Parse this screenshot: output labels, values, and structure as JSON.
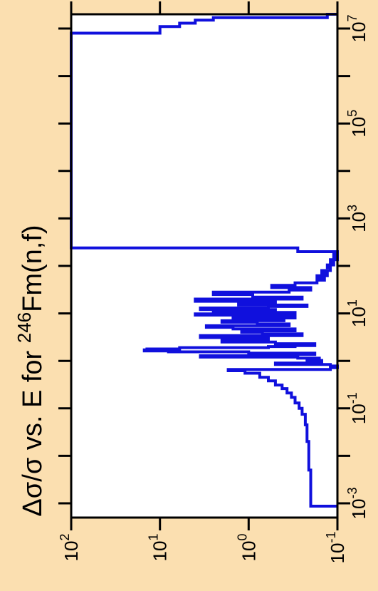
{
  "page": {
    "background": "#fbdfb0"
  },
  "chart_data": {
    "type": "line",
    "orientation": "rotated-90",
    "title": "Δσ/σ vs. E for ²⁴⁶Fm(n,f)",
    "title_parts": {
      "pre": "Δσ/σ vs. E for ",
      "sup": "246",
      "post": "Fm(n,f)"
    },
    "x_axis": {
      "label": "E",
      "scale": "log",
      "range": [
        0.0005,
        20000000
      ],
      "tick_labels": [
        {
          "value": 0.001,
          "base": "10",
          "exp": "-3"
        },
        {
          "value": 0.1,
          "base": "10",
          "exp": "-1"
        },
        {
          "value": 10,
          "base": "10",
          "exp": "1"
        },
        {
          "value": 1000,
          "base": "10",
          "exp": "3"
        },
        {
          "value": 100000,
          "base": "10",
          "exp": "5"
        },
        {
          "value": 10000000,
          "base": "10",
          "exp": "7"
        }
      ]
    },
    "y_axis": {
      "label": "Δσ/σ",
      "scale": "log",
      "range": [
        0.1,
        100
      ],
      "tick_labels": [
        {
          "value": 100,
          "base": "10",
          "exp": "2"
        },
        {
          "value": 10,
          "base": "10",
          "exp": "1"
        },
        {
          "value": 1,
          "base": "10",
          "exp": "0"
        },
        {
          "value": 0.1,
          "base": "10",
          "exp": "-1"
        }
      ]
    },
    "grid": false,
    "series": [
      {
        "color": "#1010dd",
        "points": [
          [
            0.00087,
            0.1
          ],
          [
            0.00087,
            0.2
          ],
          [
            0.005,
            0.2
          ],
          [
            0.005,
            0.21
          ],
          [
            0.02,
            0.21
          ],
          [
            0.02,
            0.22
          ],
          [
            0.045,
            0.22
          ],
          [
            0.045,
            0.23
          ],
          [
            0.075,
            0.23
          ],
          [
            0.075,
            0.25
          ],
          [
            0.1,
            0.25
          ],
          [
            0.1,
            0.27
          ],
          [
            0.13,
            0.27
          ],
          [
            0.13,
            0.3
          ],
          [
            0.17,
            0.3
          ],
          [
            0.17,
            0.33
          ],
          [
            0.21,
            0.33
          ],
          [
            0.21,
            0.37
          ],
          [
            0.26,
            0.37
          ],
          [
            0.26,
            0.42
          ],
          [
            0.31,
            0.42
          ],
          [
            0.31,
            0.5
          ],
          [
            0.38,
            0.5
          ],
          [
            0.38,
            0.6
          ],
          [
            0.45,
            0.6
          ],
          [
            0.45,
            0.75
          ],
          [
            0.55,
            0.75
          ],
          [
            0.55,
            1.1
          ],
          [
            0.62,
            1.1
          ],
          [
            0.62,
            1.7
          ],
          [
            0.66,
            1.7
          ],
          [
            0.66,
            0.12
          ],
          [
            0.72,
            0.12
          ],
          [
            0.72,
            0.1
          ],
          [
            0.78,
            0.1
          ],
          [
            0.78,
            0.12
          ],
          [
            0.84,
            0.12
          ],
          [
            0.84,
            0.5
          ],
          [
            0.9,
            0.5
          ],
          [
            0.9,
            0.2
          ],
          [
            0.96,
            0.2
          ],
          [
            0.96,
            0.15
          ],
          [
            1.02,
            0.15
          ],
          [
            1.02,
            0.22
          ],
          [
            1.08,
            0.22
          ],
          [
            1.08,
            0.16
          ],
          [
            1.14,
            0.16
          ],
          [
            1.14,
            0.28
          ],
          [
            1.2,
            0.28
          ],
          [
            1.2,
            3.5
          ],
          [
            1.28,
            3.5
          ],
          [
            1.28,
            0.6
          ],
          [
            1.36,
            0.6
          ],
          [
            1.36,
            0.18
          ],
          [
            1.45,
            0.18
          ],
          [
            1.45,
            1.0
          ],
          [
            1.55,
            1.0
          ],
          [
            1.55,
            8
          ],
          [
            1.62,
            8
          ],
          [
            1.62,
            15
          ],
          [
            1.7,
            15
          ],
          [
            1.7,
            14
          ],
          [
            1.78,
            14
          ],
          [
            1.78,
            6
          ],
          [
            1.9,
            6
          ],
          [
            1.9,
            0.6
          ],
          [
            2.0,
            0.6
          ],
          [
            2.0,
            0.3
          ],
          [
            2.1,
            0.3
          ],
          [
            2.1,
            0.18
          ],
          [
            2.3,
            0.18
          ],
          [
            2.3,
            0.5
          ],
          [
            2.5,
            0.5
          ],
          [
            2.5,
            2.0
          ],
          [
            2.8,
            2.0
          ],
          [
            2.8,
            0.6
          ],
          [
            3.1,
            0.6
          ],
          [
            3.1,
            3.5
          ],
          [
            3.4,
            3.5
          ],
          [
            3.4,
            0.25
          ],
          [
            3.7,
            0.25
          ],
          [
            3.7,
            0.7
          ],
          [
            4.0,
            0.7
          ],
          [
            4.0,
            1.2
          ],
          [
            4.3,
            1.2
          ],
          [
            4.3,
            0.3
          ],
          [
            4.7,
            0.3
          ],
          [
            4.7,
            1.5
          ],
          [
            5.1,
            1.5
          ],
          [
            5.1,
            3.0
          ],
          [
            5.5,
            3.0
          ],
          [
            5.5,
            0.35
          ],
          [
            6.0,
            0.35
          ],
          [
            6.0,
            0.8
          ],
          [
            6.5,
            0.8
          ],
          [
            6.5,
            2.0
          ],
          [
            7.0,
            2.0
          ],
          [
            7.0,
            0.4
          ],
          [
            7.5,
            0.4
          ],
          [
            7.5,
            1.5
          ],
          [
            8.0,
            1.5
          ],
          [
            8.0,
            0.3
          ],
          [
            8.6,
            0.3
          ],
          [
            8.6,
            1.0
          ],
          [
            9.2,
            1.0
          ],
          [
            9.2,
            4.0
          ],
          [
            9.8,
            4.0
          ],
          [
            9.8,
            0.3
          ],
          [
            10.5,
            0.3
          ],
          [
            10.5,
            2.5
          ],
          [
            11.2,
            2.5
          ],
          [
            11.2,
            0.5
          ],
          [
            12,
            0.5
          ],
          [
            12,
            3.5
          ],
          [
            13,
            3.5
          ],
          [
            13,
            0.6
          ],
          [
            14,
            0.6
          ],
          [
            14,
            0.22
          ],
          [
            15,
            0.22
          ],
          [
            15,
            1.3
          ],
          [
            16.5,
            1.3
          ],
          [
            16.5,
            0.5
          ],
          [
            18,
            0.5
          ],
          [
            18,
            4.0
          ],
          [
            20,
            4.0
          ],
          [
            20,
            0.25
          ],
          [
            22,
            0.25
          ],
          [
            22,
            0.9
          ],
          [
            25,
            0.9
          ],
          [
            25,
            2.5
          ],
          [
            28,
            2.5
          ],
          [
            28,
            0.35
          ],
          [
            31,
            0.35
          ],
          [
            31,
            0.2
          ],
          [
            35,
            0.2
          ],
          [
            35,
            0.55
          ],
          [
            39,
            0.55
          ],
          [
            39,
            0.3
          ],
          [
            44,
            0.3
          ],
          [
            44,
            0.17
          ],
          [
            50,
            0.17
          ],
          [
            50,
            0.14
          ],
          [
            56,
            0.14
          ],
          [
            56,
            0.17
          ],
          [
            62,
            0.17
          ],
          [
            62,
            0.13
          ],
          [
            70,
            0.13
          ],
          [
            70,
            0.15
          ],
          [
            80,
            0.15
          ],
          [
            80,
            0.12
          ],
          [
            92,
            0.12
          ],
          [
            92,
            0.13
          ],
          [
            105,
            0.13
          ],
          [
            105,
            0.11
          ],
          [
            120,
            0.11
          ],
          [
            120,
            0.12
          ],
          [
            135,
            0.12
          ],
          [
            135,
            0.1
          ],
          [
            155,
            0.1
          ],
          [
            155,
            0.11
          ],
          [
            175,
            0.11
          ],
          [
            175,
            0.1
          ],
          [
            200,
            0.1
          ],
          [
            200,
            0.28
          ],
          [
            240,
            0.28
          ],
          [
            240,
            100
          ],
          [
            8000000,
            100
          ],
          [
            8000000,
            10
          ],
          [
            11000000,
            10
          ],
          [
            11000000,
            6
          ],
          [
            13000000,
            6
          ],
          [
            13000000,
            4
          ],
          [
            15000000,
            4
          ],
          [
            15000000,
            2.5
          ],
          [
            17000000,
            2.5
          ],
          [
            17000000,
            0.13
          ],
          [
            20000000,
            0.13
          ],
          [
            20000000,
            0.1
          ]
        ]
      }
    ]
  }
}
